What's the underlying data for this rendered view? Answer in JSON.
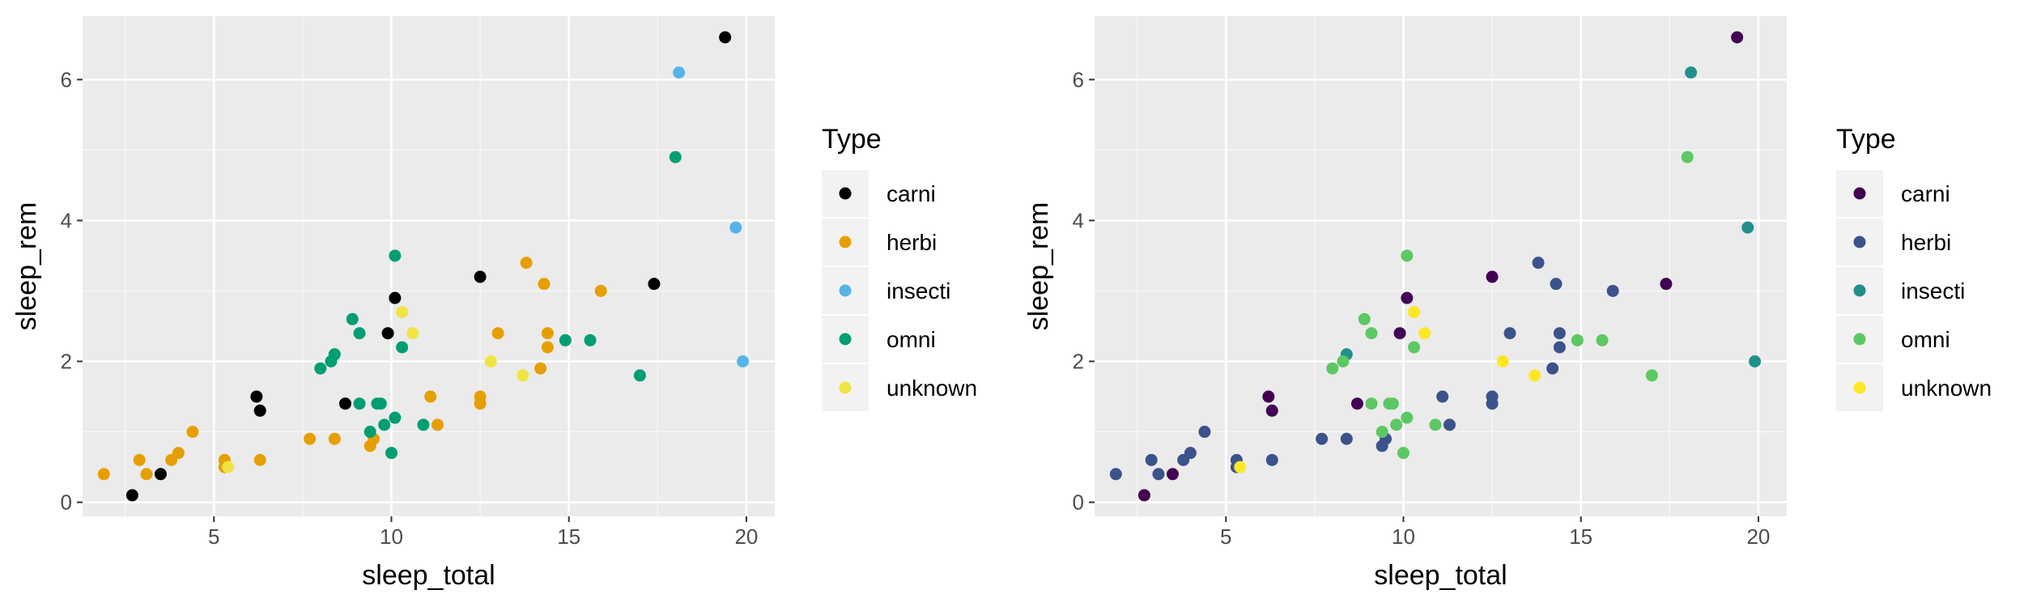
{
  "chart_data": [
    {
      "type": "scatter",
      "xlabel": "sleep_total",
      "ylabel": "sleep_rem",
      "xlim": [
        1.3,
        20.8
      ],
      "ylim": [
        -0.2,
        6.9
      ],
      "xticks": [
        5,
        10,
        15,
        20
      ],
      "yticks": [
        0,
        2,
        4,
        6
      ],
      "grid": true,
      "legend": {
        "title": "Type",
        "placement": "right",
        "entries": [
          {
            "label": "carni",
            "color": "#000000"
          },
          {
            "label": "herbi",
            "color": "#E69F00"
          },
          {
            "label": "insecti",
            "color": "#56B4E9"
          },
          {
            "label": "omni",
            "color": "#009E73"
          },
          {
            "label": "unknown",
            "color": "#F0E442"
          }
        ]
      },
      "series": [
        {
          "name": "carni",
          "color": "#000000",
          "points": [
            [
              2.7,
              0.1
            ],
            [
              3.5,
              0.4
            ],
            [
              6.2,
              1.5
            ],
            [
              6.3,
              1.3
            ],
            [
              8.7,
              1.4
            ],
            [
              9.9,
              2.4
            ],
            [
              10.1,
              2.9
            ],
            [
              12.5,
              3.2
            ],
            [
              17.4,
              3.1
            ],
            [
              19.4,
              6.6
            ]
          ]
        },
        {
          "name": "herbi",
          "color": "#E69F00",
          "points": [
            [
              1.9,
              0.4
            ],
            [
              2.9,
              0.6
            ],
            [
              3.1,
              0.4
            ],
            [
              3.8,
              0.6
            ],
            [
              4.0,
              0.7
            ],
            [
              4.4,
              1.0
            ],
            [
              5.3,
              0.6
            ],
            [
              5.3,
              0.5
            ],
            [
              6.3,
              0.6
            ],
            [
              7.7,
              0.9
            ],
            [
              8.4,
              0.9
            ],
            [
              9.4,
              0.8
            ],
            [
              9.5,
              0.9
            ],
            [
              11.1,
              1.5
            ],
            [
              11.3,
              1.1
            ],
            [
              12.5,
              1.5
            ],
            [
              12.5,
              1.4
            ],
            [
              13.0,
              2.4
            ],
            [
              13.8,
              3.4
            ],
            [
              14.2,
              1.9
            ],
            [
              14.3,
              3.1
            ],
            [
              14.4,
              2.4
            ],
            [
              14.4,
              2.2
            ],
            [
              15.9,
              3.0
            ]
          ]
        },
        {
          "name": "insecti",
          "color": "#56B4E9",
          "points": [
            [
              8.4,
              2.1
            ],
            [
              18.1,
              6.1
            ],
            [
              19.7,
              3.9
            ],
            [
              19.9,
              2.0
            ]
          ]
        },
        {
          "name": "omni",
          "color": "#009E73",
          "points": [
            [
              8.0,
              1.9
            ],
            [
              8.3,
              2.0
            ],
            [
              8.4,
              2.1
            ],
            [
              8.9,
              2.6
            ],
            [
              9.1,
              2.4
            ],
            [
              9.1,
              1.4
            ],
            [
              9.4,
              1.0
            ],
            [
              9.6,
              1.4
            ],
            [
              9.7,
              1.4
            ],
            [
              9.8,
              1.1
            ],
            [
              10.0,
              0.7
            ],
            [
              10.1,
              1.2
            ],
            [
              10.1,
              3.5
            ],
            [
              10.3,
              2.2
            ],
            [
              10.9,
              1.1
            ],
            [
              14.9,
              2.3
            ],
            [
              15.6,
              2.3
            ],
            [
              17.0,
              1.8
            ],
            [
              18.0,
              4.9
            ]
          ]
        },
        {
          "name": "unknown",
          "color": "#F0E442",
          "points": [
            [
              5.4,
              0.5
            ],
            [
              10.3,
              2.7
            ],
            [
              10.6,
              2.4
            ],
            [
              12.8,
              2.0
            ],
            [
              13.7,
              1.8
            ]
          ]
        }
      ]
    },
    {
      "type": "scatter",
      "xlabel": "sleep_total",
      "ylabel": "sleep_rem",
      "xlim": [
        1.3,
        20.8
      ],
      "ylim": [
        -0.2,
        6.9
      ],
      "xticks": [
        5,
        10,
        15,
        20
      ],
      "yticks": [
        0,
        2,
        4,
        6
      ],
      "grid": true,
      "legend": {
        "title": "Type",
        "placement": "right",
        "entries": [
          {
            "label": "carni",
            "color": "#440154"
          },
          {
            "label": "herbi",
            "color": "#3B528B"
          },
          {
            "label": "insecti",
            "color": "#21908C"
          },
          {
            "label": "omni",
            "color": "#5DC863"
          },
          {
            "label": "unknown",
            "color": "#FDE725"
          }
        ]
      },
      "series": [
        {
          "name": "carni",
          "color": "#440154",
          "points": [
            [
              2.7,
              0.1
            ],
            [
              3.5,
              0.4
            ],
            [
              6.2,
              1.5
            ],
            [
              6.3,
              1.3
            ],
            [
              8.7,
              1.4
            ],
            [
              9.9,
              2.4
            ],
            [
              10.1,
              2.9
            ],
            [
              12.5,
              3.2
            ],
            [
              17.4,
              3.1
            ],
            [
              19.4,
              6.6
            ]
          ]
        },
        {
          "name": "herbi",
          "color": "#3B528B",
          "points": [
            [
              1.9,
              0.4
            ],
            [
              2.9,
              0.6
            ],
            [
              3.1,
              0.4
            ],
            [
              3.8,
              0.6
            ],
            [
              4.0,
              0.7
            ],
            [
              4.4,
              1.0
            ],
            [
              5.3,
              0.6
            ],
            [
              5.3,
              0.5
            ],
            [
              6.3,
              0.6
            ],
            [
              7.7,
              0.9
            ],
            [
              8.4,
              0.9
            ],
            [
              9.4,
              0.8
            ],
            [
              9.5,
              0.9
            ],
            [
              11.1,
              1.5
            ],
            [
              11.3,
              1.1
            ],
            [
              12.5,
              1.5
            ],
            [
              12.5,
              1.4
            ],
            [
              13.0,
              2.4
            ],
            [
              13.8,
              3.4
            ],
            [
              14.2,
              1.9
            ],
            [
              14.3,
              3.1
            ],
            [
              14.4,
              2.4
            ],
            [
              14.4,
              2.2
            ],
            [
              15.9,
              3.0
            ]
          ]
        },
        {
          "name": "insecti",
          "color": "#21908C",
          "points": [
            [
              8.4,
              2.1
            ],
            [
              18.1,
              6.1
            ],
            [
              19.7,
              3.9
            ],
            [
              19.9,
              2.0
            ]
          ]
        },
        {
          "name": "omni",
          "color": "#5DC863",
          "points": [
            [
              8.0,
              1.9
            ],
            [
              8.3,
              2.0
            ],
            [
              8.9,
              2.6
            ],
            [
              9.1,
              2.4
            ],
            [
              9.1,
              1.4
            ],
            [
              9.4,
              1.0
            ],
            [
              9.6,
              1.4
            ],
            [
              9.7,
              1.4
            ],
            [
              9.8,
              1.1
            ],
            [
              10.0,
              0.7
            ],
            [
              10.1,
              1.2
            ],
            [
              10.1,
              3.5
            ],
            [
              10.3,
              2.2
            ],
            [
              10.9,
              1.1
            ],
            [
              14.9,
              2.3
            ],
            [
              15.6,
              2.3
            ],
            [
              17.0,
              1.8
            ],
            [
              18.0,
              4.9
            ]
          ]
        },
        {
          "name": "unknown",
          "color": "#FDE725",
          "points": [
            [
              5.4,
              0.5
            ],
            [
              10.3,
              2.7
            ],
            [
              10.6,
              2.4
            ],
            [
              12.8,
              2.0
            ],
            [
              13.7,
              1.8
            ]
          ]
        }
      ]
    }
  ]
}
